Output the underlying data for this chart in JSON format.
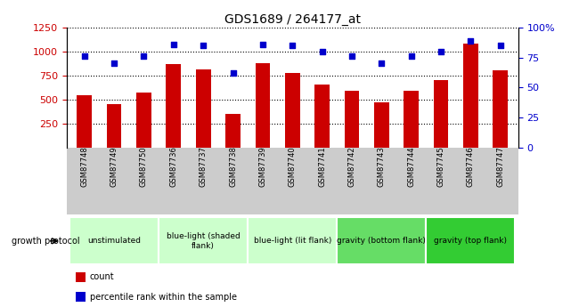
{
  "title": "GDS1689 / 264177_at",
  "samples": [
    "GSM87748",
    "GSM87749",
    "GSM87750",
    "GSM87736",
    "GSM87737",
    "GSM87738",
    "GSM87739",
    "GSM87740",
    "GSM87741",
    "GSM87742",
    "GSM87743",
    "GSM87744",
    "GSM87745",
    "GSM87746",
    "GSM87747"
  ],
  "counts": [
    545,
    455,
    575,
    870,
    810,
    345,
    875,
    775,
    660,
    595,
    470,
    590,
    705,
    1080,
    800
  ],
  "percentiles": [
    76,
    70,
    76,
    86,
    85,
    62,
    86,
    85,
    80,
    76,
    70,
    76,
    80,
    89,
    85
  ],
  "bar_color": "#cc0000",
  "dot_color": "#0000cc",
  "ylim_left": [
    0,
    1250
  ],
  "ylim_right": [
    0,
    100
  ],
  "yticks_left": [
    250,
    500,
    750,
    1000,
    1250
  ],
  "yticks_right": [
    0,
    25,
    50,
    75,
    100
  ],
  "groups": [
    {
      "label": "unstimulated",
      "start": 0,
      "end": 3,
      "color": "#ccffcc"
    },
    {
      "label": "blue-light (shaded\nflank)",
      "start": 3,
      "end": 6,
      "color": "#ccffcc"
    },
    {
      "label": "blue-light (lit flank)",
      "start": 6,
      "end": 9,
      "color": "#ccffcc"
    },
    {
      "label": "gravity (bottom flank)",
      "start": 9,
      "end": 12,
      "color": "#66dd66"
    },
    {
      "label": "gravity (top flank)",
      "start": 12,
      "end": 15,
      "color": "#33cc33"
    }
  ],
  "legend_items": [
    {
      "label": "count",
      "color": "#cc0000"
    },
    {
      "label": "percentile rank within the sample",
      "color": "#0000cc"
    }
  ],
  "growth_protocol_label": "growth protocol",
  "background_color": "#ffffff",
  "plot_bg": "#ffffff",
  "tick_label_color_left": "#cc0000",
  "tick_label_color_right": "#0000cc",
  "sample_bg_color": "#cccccc",
  "group_border_color": "#ffffff"
}
